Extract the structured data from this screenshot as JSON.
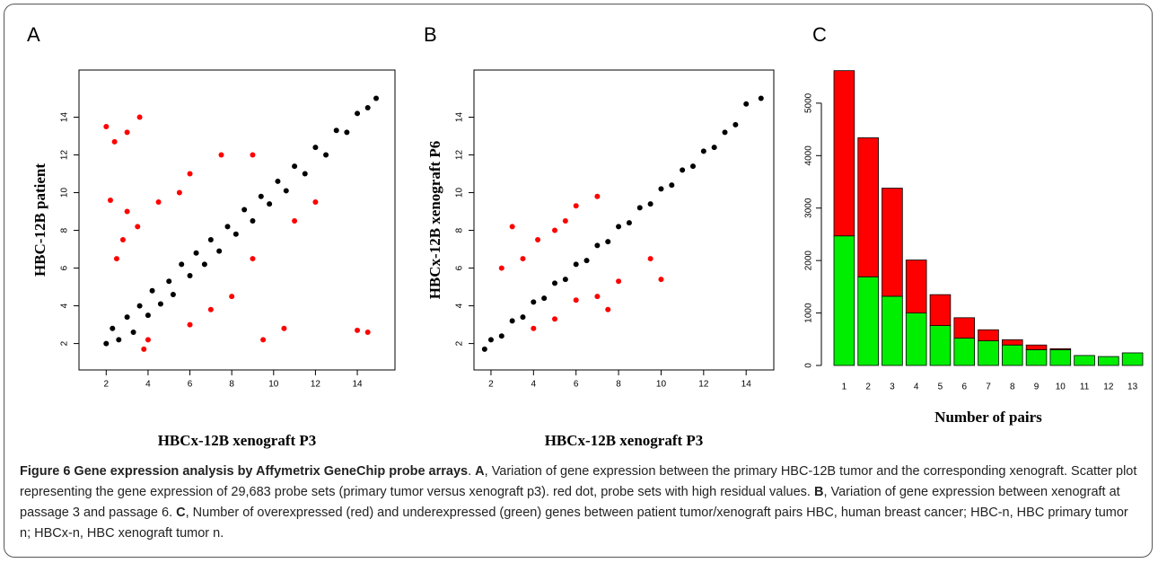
{
  "chart_data": [
    {
      "type": "scatter",
      "panel": "A",
      "x_label": "HBCx-12B xenograft P3",
      "y_label": "HBC-12B  patient",
      "xlim": [
        0.7,
        15.8
      ],
      "ylim": [
        0.6,
        16.5
      ],
      "xticks": [
        2,
        4,
        6,
        8,
        10,
        12,
        14
      ],
      "yticks": [
        2,
        4,
        6,
        8,
        10,
        12,
        14
      ],
      "series": [
        {
          "color": "#000000",
          "x": [
            2,
            2.3,
            2.6,
            3,
            3.3,
            3.6,
            4,
            4.2,
            4.6,
            5,
            5.2,
            5.6,
            6,
            6.3,
            6.7,
            7,
            7.4,
            7.8,
            8.2,
            8.6,
            9,
            9.4,
            9.8,
            10.2,
            10.6,
            11,
            11.5,
            12,
            12.5,
            13,
            13.5,
            14,
            14.5,
            14.9
          ],
          "y": [
            2,
            2.8,
            2.2,
            3.4,
            2.6,
            4,
            3.5,
            4.8,
            4.1,
            5.3,
            4.6,
            6.2,
            5.6,
            6.8,
            6.2,
            7.5,
            6.9,
            8.2,
            7.8,
            9.1,
            8.5,
            9.8,
            9.4,
            10.6,
            10.1,
            11.4,
            11,
            12.4,
            12,
            13.3,
            13.2,
            14.2,
            14.5,
            15
          ]
        },
        {
          "color": "#ff0000",
          "x": [
            2,
            2.4,
            3,
            3.6,
            2.2,
            3,
            2.8,
            3.5,
            4.5,
            2.5,
            5.5,
            6,
            7.5,
            9,
            4,
            6,
            7,
            8,
            9.5,
            10.5,
            14,
            14.5,
            9,
            11,
            12,
            3.8
          ],
          "y": [
            13.5,
            12.7,
            13.2,
            14,
            9.6,
            9,
            7.5,
            8.2,
            9.5,
            6.5,
            10,
            11,
            12,
            12,
            2.2,
            3,
            3.8,
            4.5,
            2.2,
            2.8,
            2.7,
            2.6,
            6.5,
            8.5,
            9.5,
            1.7
          ]
        }
      ]
    },
    {
      "type": "scatter",
      "panel": "B",
      "x_label": "HBCx-12B xenograft P3",
      "y_label": "HBCx-12B xenograft P6",
      "xlim": [
        1.2,
        15.3
      ],
      "ylim": [
        0.6,
        16.5
      ],
      "xticks": [
        2,
        4,
        6,
        8,
        10,
        12,
        14
      ],
      "yticks": [
        2,
        4,
        6,
        8,
        10,
        12,
        14
      ],
      "series": [
        {
          "color": "#000000",
          "x": [
            1.7,
            2,
            2.5,
            3,
            3.5,
            4,
            4.5,
            5,
            5.5,
            6,
            6.5,
            7,
            7.5,
            8,
            8.5,
            9,
            9.5,
            10,
            10.5,
            11,
            11.5,
            12,
            12.5,
            13,
            13.5,
            14,
            14.7
          ],
          "y": [
            1.7,
            2.2,
            2.4,
            3.2,
            3.4,
            4.2,
            4.4,
            5.2,
            5.4,
            6.2,
            6.4,
            7.2,
            7.4,
            8.2,
            8.4,
            9.2,
            9.4,
            10.2,
            10.4,
            11.2,
            11.4,
            12.2,
            12.4,
            13.2,
            13.6,
            14.7,
            15
          ]
        },
        {
          "color": "#ff0000",
          "x": [
            3,
            2.5,
            3.5,
            4.2,
            5,
            5.5,
            6,
            7,
            4,
            5,
            6,
            7,
            8,
            9.5,
            10,
            7.5
          ],
          "y": [
            8.2,
            6,
            6.5,
            7.5,
            8,
            8.5,
            9.3,
            9.8,
            2.8,
            3.3,
            4.3,
            4.5,
            5.3,
            6.5,
            5.4,
            3.8
          ]
        }
      ]
    },
    {
      "type": "bar",
      "panel": "C",
      "x_label": "Number of pairs",
      "categories": [
        "1",
        "2",
        "3",
        "4",
        "5",
        "6",
        "7",
        "8",
        "9",
        "10",
        "11",
        "12",
        "13"
      ],
      "ylim": [
        0,
        5700
      ],
      "yticks": [
        0,
        1000,
        2000,
        3000,
        4000,
        5000
      ],
      "series": [
        {
          "color": "#00ee00",
          "values": [
            2470,
            1690,
            1320,
            1000,
            760,
            520,
            470,
            390,
            300,
            300,
            190,
            170,
            240
          ]
        },
        {
          "color": "#ff0000",
          "values": [
            3150,
            2650,
            2060,
            1010,
            590,
            390,
            210,
            100,
            90,
            20,
            0,
            0,
            0
          ]
        }
      ]
    }
  ],
  "caption": [
    {
      "text": "Figure 6 Gene expression analysis by Affymetrix GeneChip probe arrays",
      "bold": true
    },
    {
      "text": ". ",
      "bold": false
    },
    {
      "text": "A",
      "bold": true
    },
    {
      "text": ", Variation of gene expression between the primary HBC-12B tumor and the corresponding xenograft. Scatter plot representing the gene expression of 29,683 probe sets (primary tumor versus xenograft p3). red dot, probe sets with high residual values. ",
      "bold": false
    },
    {
      "text": "B",
      "bold": true
    },
    {
      "text": ", Variation of gene expression between xenograft at passage 3 and passage 6. ",
      "bold": false
    },
    {
      "text": "C",
      "bold": true
    },
    {
      "text": ", Number of overexpressed (red) and underexpressed (green) genes between patient tumor/xenograft pairs HBC, human breast cancer; HBC-n, HBC primary tumor n; HBCx-n, HBC xenograft tumor n.",
      "bold": false
    }
  ]
}
